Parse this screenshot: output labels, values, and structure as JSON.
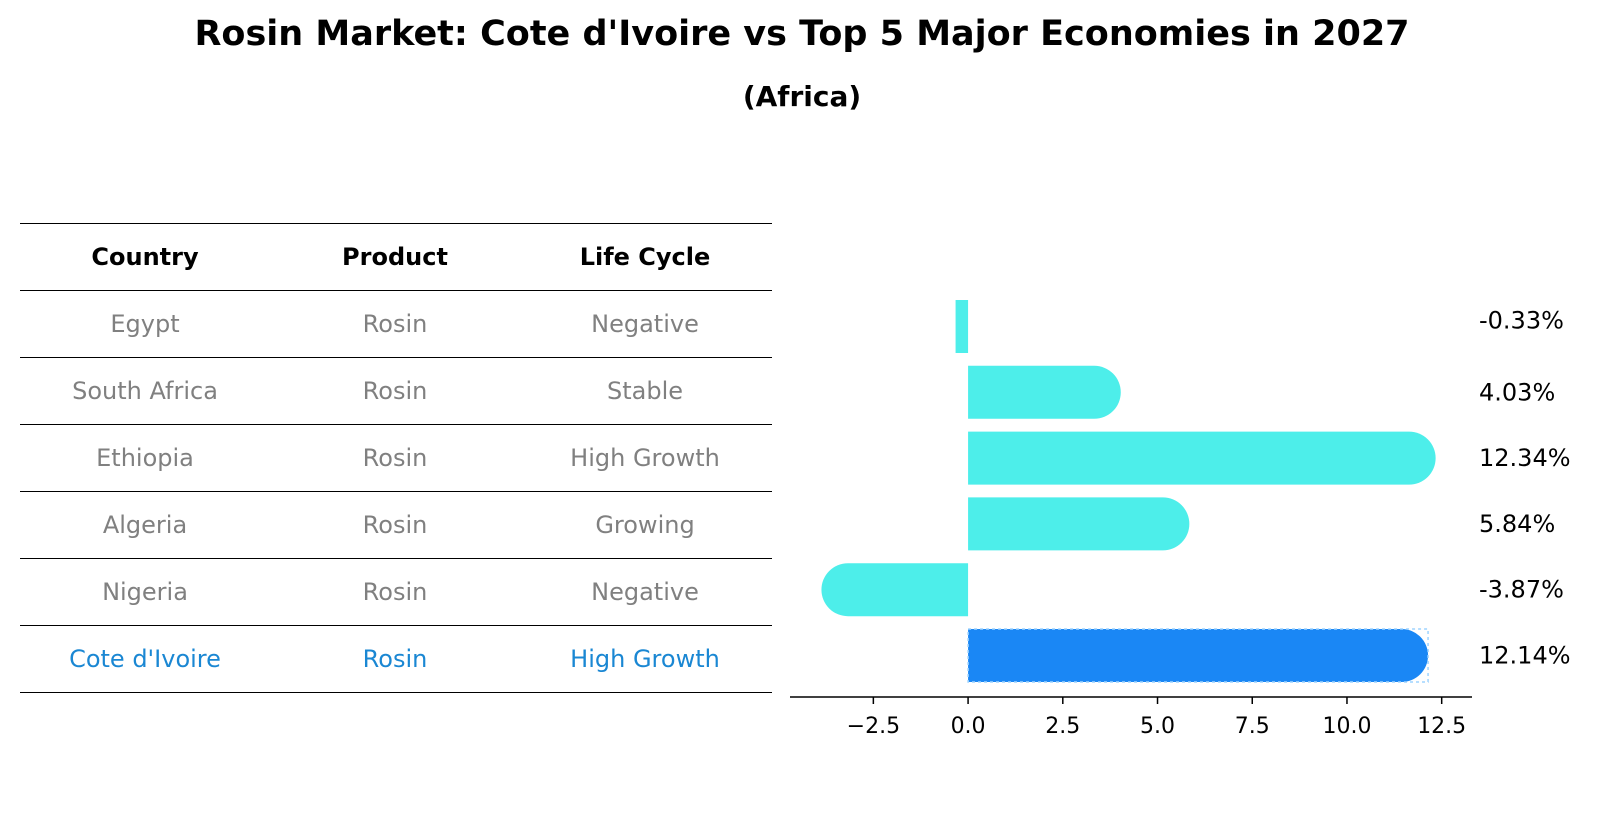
{
  "title": "Rosin Market: Cote d'Ivoire vs Top 5 Major Economies in 2027",
  "subtitle": "(Africa)",
  "table": {
    "headers": [
      "Country",
      "Product",
      "Life Cycle"
    ],
    "rows": [
      [
        "Egypt",
        "Rosin",
        "Negative"
      ],
      [
        "South Africa",
        "Rosin",
        "Stable"
      ],
      [
        "Ethiopia",
        "Rosin",
        "High Growth"
      ],
      [
        "Algeria",
        "Rosin",
        "Growing"
      ],
      [
        "Nigeria",
        "Rosin",
        "Negative"
      ],
      [
        "Cote d'Ivoire",
        "Rosin",
        "High Growth"
      ]
    ],
    "highlight_row": 5
  },
  "colors": {
    "bar": "#4deeea",
    "highlight_bar": "#1a87f5",
    "muted_text": "#808080",
    "highlight_text": "#1a87d3"
  },
  "chart_data": {
    "type": "bar",
    "orientation": "horizontal",
    "categories": [
      "Egypt",
      "South Africa",
      "Ethiopia",
      "Algeria",
      "Nigeria",
      "Cote d'Ivoire"
    ],
    "values": [
      -0.33,
      4.03,
      12.34,
      5.84,
      -3.87,
      12.14
    ],
    "value_labels": [
      "-0.33%",
      "4.03%",
      "12.34%",
      "5.84%",
      "-3.87%",
      "12.14%"
    ],
    "highlight_index": 5,
    "xlim": [
      -4.7,
      13.3
    ],
    "xticks": [
      -2.5,
      0.0,
      2.5,
      5.0,
      7.5,
      10.0,
      12.5
    ],
    "xtick_labels": [
      "−2.5",
      "0.0",
      "2.5",
      "5.0",
      "7.5",
      "10.0",
      "12.5"
    ],
    "grid": false
  }
}
